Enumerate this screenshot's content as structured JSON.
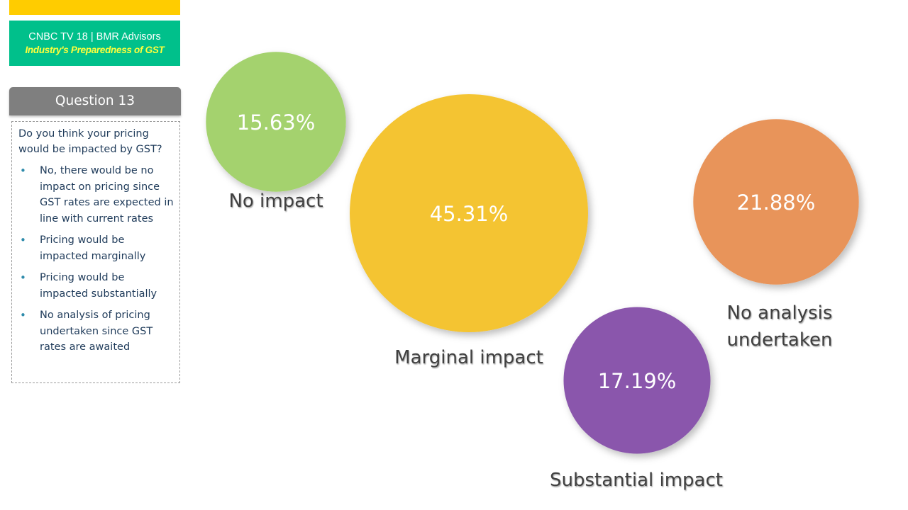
{
  "header": {
    "brand_line1": "CNBC TV 18 | BMR Advisors",
    "brand_line2": "Industry's Preparedness of GST",
    "accent_yellow": "#ffcc00",
    "accent_green": "#00c08b"
  },
  "question": {
    "title": "Question 13",
    "text": "Do you think your pricing would be impacted by GST?",
    "options": [
      "No, there would be no impact on pricing since GST rates are expected in line with current rates",
      "Pricing would be impacted marginally",
      "Pricing would be impacted substantially",
      "No analysis of pricing undertaken since GST rates are awaited"
    ]
  },
  "chart_data": {
    "type": "bubble",
    "title": "",
    "series": [
      {
        "name": "No impact",
        "value": 15.63,
        "label": "15.63%",
        "color": "#a4d26e"
      },
      {
        "name": "Marginal impact",
        "value": 45.31,
        "label": "45.31%",
        "color": "#f4c432"
      },
      {
        "name": "No analysis undertaken",
        "value": 21.88,
        "label": "21.88%",
        "color": "#e8945a"
      },
      {
        "name": "Substantial impact",
        "value": 17.19,
        "label": "17.19%",
        "color": "#8a57ac"
      }
    ]
  }
}
